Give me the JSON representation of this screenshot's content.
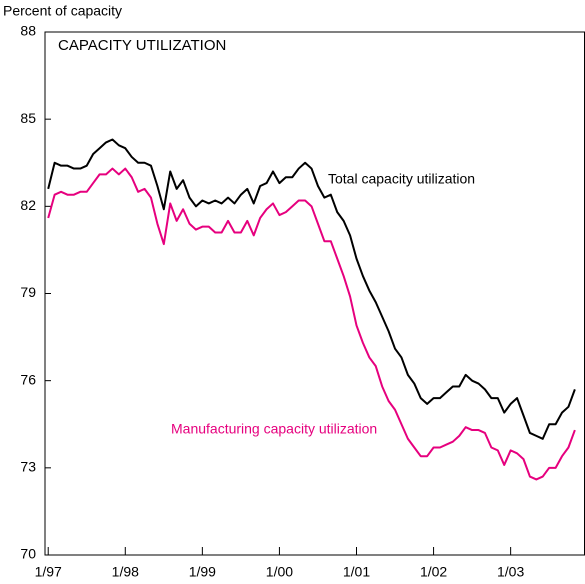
{
  "chart_data": {
    "type": "line",
    "y_axis_label": "Percent of capacity",
    "title": "CAPACITY UTILIZATION",
    "annotations": [
      "Total capacity utilization",
      "Manufacturing capacity utilization"
    ],
    "x": [
      0,
      1,
      2,
      3,
      4,
      5,
      6,
      7,
      8,
      9,
      10,
      11,
      12,
      13,
      14,
      15,
      16,
      17,
      18,
      19,
      20,
      21,
      22,
      23,
      24,
      25,
      26,
      27,
      28,
      29,
      30,
      31,
      32,
      33,
      34,
      35,
      36,
      37,
      38,
      39,
      40,
      41,
      42,
      43,
      44,
      45,
      46,
      47,
      48,
      49,
      50,
      51,
      52,
      53,
      54,
      55,
      56,
      57,
      58,
      59,
      60,
      61,
      62,
      63,
      64,
      65,
      66,
      67,
      68,
      69,
      70,
      71,
      72,
      73,
      74,
      75,
      76,
      77,
      78,
      79,
      80,
      81,
      82
    ],
    "series": [
      {
        "name": "Total capacity utilization",
        "color": "#000000",
        "values": [
          82.6,
          83.5,
          83.4,
          83.4,
          83.3,
          83.3,
          83.4,
          83.8,
          84.0,
          84.2,
          84.3,
          84.1,
          84.0,
          83.7,
          83.5,
          83.5,
          83.4,
          82.7,
          81.9,
          83.2,
          82.6,
          82.9,
          82.3,
          82.0,
          82.2,
          82.1,
          82.2,
          82.1,
          82.3,
          82.1,
          82.4,
          82.6,
          82.1,
          82.7,
          82.8,
          83.2,
          82.8,
          83.0,
          83.0,
          83.3,
          83.5,
          83.3,
          82.7,
          82.3,
          82.4,
          81.8,
          81.5,
          81.0,
          80.2,
          79.6,
          79.1,
          78.7,
          78.2,
          77.7,
          77.1,
          76.8,
          76.2,
          75.9,
          75.4,
          75.2,
          75.4,
          75.4,
          75.6,
          75.8,
          75.8,
          76.2,
          76.0,
          75.9,
          75.7,
          75.4,
          75.4,
          74.9,
          75.2,
          75.4,
          74.8,
          74.2,
          74.1,
          74.0,
          74.5,
          74.5,
          74.9,
          75.1,
          75.7
        ]
      },
      {
        "name": "Manufacturing capacity utilization",
        "color": "#e6007e",
        "values": [
          81.6,
          82.4,
          82.5,
          82.4,
          82.4,
          82.5,
          82.5,
          82.8,
          83.1,
          83.1,
          83.3,
          83.1,
          83.3,
          83.0,
          82.5,
          82.6,
          82.3,
          81.4,
          80.7,
          82.1,
          81.5,
          81.9,
          81.4,
          81.2,
          81.3,
          81.3,
          81.1,
          81.1,
          81.5,
          81.1,
          81.1,
          81.5,
          81.0,
          81.6,
          81.9,
          82.1,
          81.7,
          81.8,
          82.0,
          82.2,
          82.2,
          82.0,
          81.4,
          80.8,
          80.8,
          80.2,
          79.6,
          78.9,
          77.9,
          77.3,
          76.8,
          76.5,
          75.8,
          75.3,
          75.0,
          74.5,
          74.0,
          73.7,
          73.4,
          73.4,
          73.7,
          73.7,
          73.8,
          73.9,
          74.1,
          74.4,
          74.3,
          74.3,
          74.2,
          73.7,
          73.6,
          73.1,
          73.6,
          73.5,
          73.3,
          72.7,
          72.6,
          72.7,
          73.0,
          73.0,
          73.4,
          73.7,
          74.3
        ]
      }
    ],
    "xlim": [
      -0.5,
      83.5
    ],
    "xticks": [
      {
        "value": 0,
        "label": "1/97"
      },
      {
        "value": 12,
        "label": "1/98"
      },
      {
        "value": 24,
        "label": "1/99"
      },
      {
        "value": 36,
        "label": "1/00"
      },
      {
        "value": 48,
        "label": "1/01"
      },
      {
        "value": 60,
        "label": "1/02"
      },
      {
        "value": 72,
        "label": "1/03"
      }
    ],
    "ylim": [
      70,
      88
    ],
    "yticks": [
      70,
      73,
      76,
      79,
      82,
      85,
      88
    ],
    "grid": false,
    "legend": false
  }
}
